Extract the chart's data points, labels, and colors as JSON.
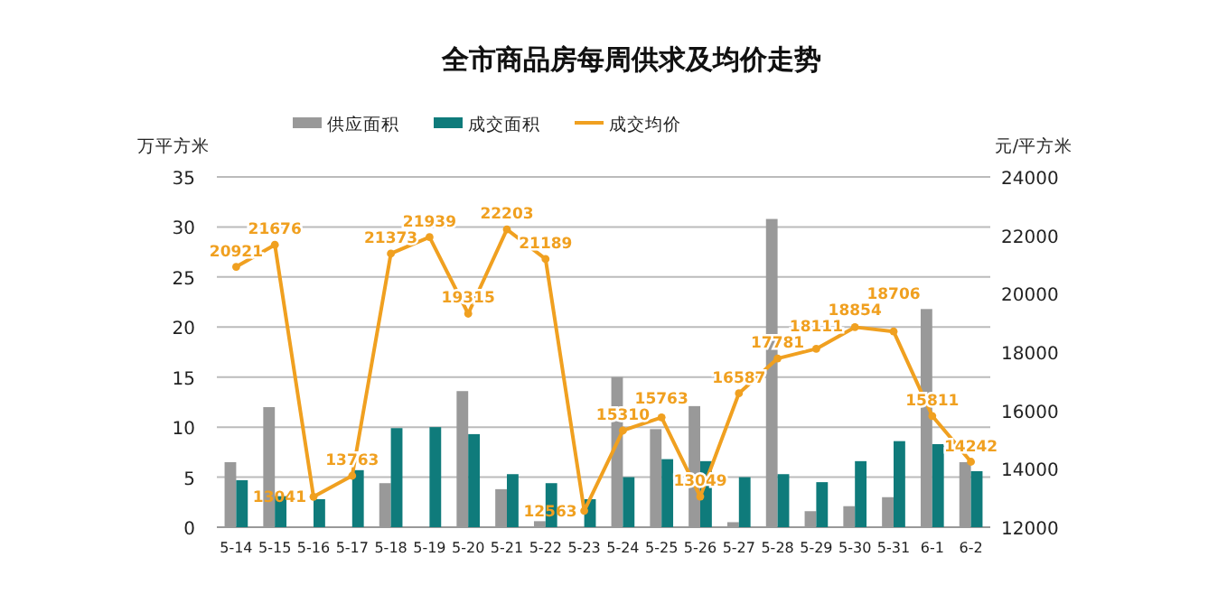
{
  "chart_data": {
    "type": "bar",
    "title": "全市商品房每周供求及均价走势",
    "ylabel": "万平方米",
    "y2label": "元/平方米",
    "categories": [
      "5-14",
      "5-15",
      "5-16",
      "5-17",
      "5-18",
      "5-19",
      "5-20",
      "5-21",
      "5-22",
      "5-23",
      "5-24",
      "5-25",
      "5-26",
      "5-27",
      "5-28",
      "5-29",
      "5-30",
      "5-31",
      "6-1",
      "6-2"
    ],
    "series": [
      {
        "name": "供应面积",
        "color": "#999999",
        "values": [
          6.5,
          12,
          0,
          0,
          4.4,
          0,
          13.6,
          3.8,
          0.6,
          0,
          15,
          9.8,
          12.1,
          0.5,
          30.8,
          1.6,
          2.1,
          3,
          21.8,
          6.5
        ]
      },
      {
        "name": "成交面积",
        "color": "#0f7b7b",
        "values": [
          4.7,
          3.1,
          2.8,
          5.7,
          9.9,
          10,
          9.3,
          5.3,
          4.4,
          2.8,
          5,
          6.8,
          6.6,
          5,
          5.3,
          4.5,
          6.6,
          8.6,
          8.3,
          5.6
        ]
      },
      {
        "name": "成交均价",
        "type": "line",
        "axis": "y2",
        "color": "#f0a020",
        "marker": "circle",
        "values": [
          20921,
          21676,
          13041,
          13763,
          21373,
          21939,
          19315,
          22203,
          21189,
          12563,
          15310,
          15763,
          13049,
          16587,
          17781,
          18111,
          18854,
          18706,
          15811,
          14242
        ],
        "value_labels": [
          "20921",
          "21676",
          "13041",
          "13763",
          "21373",
          "21939",
          "19315",
          "22203",
          "21189",
          "12563",
          "15310",
          "15763",
          "13049",
          "16587",
          "17781",
          "18111",
          "18854",
          "18706",
          "15811",
          "14242"
        ]
      }
    ],
    "ylim": [
      0,
      35
    ],
    "yticks": [
      0,
      5,
      10,
      15,
      20,
      25,
      30,
      35
    ],
    "y2lim": [
      12000,
      24000
    ],
    "y2ticks": [
      12000,
      14000,
      16000,
      18000,
      20000,
      22000,
      24000
    ],
    "grid": "y",
    "legend": "top"
  }
}
